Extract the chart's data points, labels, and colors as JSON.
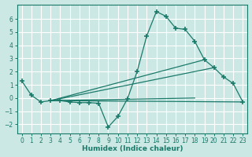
{
  "xlabel": "Humidex (Indice chaleur)",
  "bg_color": "#cce8e4",
  "line_color": "#1a7a6a",
  "grid_color": "#b8dcd8",
  "xlim": [
    -0.5,
    23.5
  ],
  "ylim": [
    -2.7,
    7.1
  ],
  "xticks": [
    0,
    1,
    2,
    3,
    4,
    5,
    6,
    7,
    8,
    9,
    10,
    11,
    12,
    13,
    14,
    15,
    16,
    17,
    18,
    19,
    20,
    21,
    22,
    23
  ],
  "yticks": [
    -2,
    -1,
    0,
    1,
    2,
    3,
    4,
    5,
    6
  ],
  "main_x": [
    0,
    1,
    2,
    3,
    4,
    5,
    6,
    7,
    8,
    9,
    10,
    11,
    12,
    13,
    14,
    15,
    16,
    17,
    18,
    19,
    20,
    21,
    22,
    23
  ],
  "main_y": [
    1.3,
    0.2,
    -0.3,
    -0.2,
    -0.2,
    -0.3,
    -0.35,
    -0.35,
    -0.4,
    -2.2,
    -1.4,
    -0.05,
    2.0,
    4.7,
    6.55,
    6.2,
    5.3,
    5.2,
    4.3,
    2.9,
    2.3,
    1.6,
    1.1,
    -0.3
  ],
  "diag_lines": [
    {
      "x": [
        3,
        20
      ],
      "y": [
        -0.2,
        2.3
      ]
    },
    {
      "x": [
        3,
        19
      ],
      "y": [
        -0.2,
        2.9
      ]
    },
    {
      "x": [
        3,
        18
      ],
      "y": [
        -0.2,
        0.0
      ]
    },
    {
      "x": [
        3,
        23
      ],
      "y": [
        -0.2,
        -0.3
      ]
    }
  ]
}
